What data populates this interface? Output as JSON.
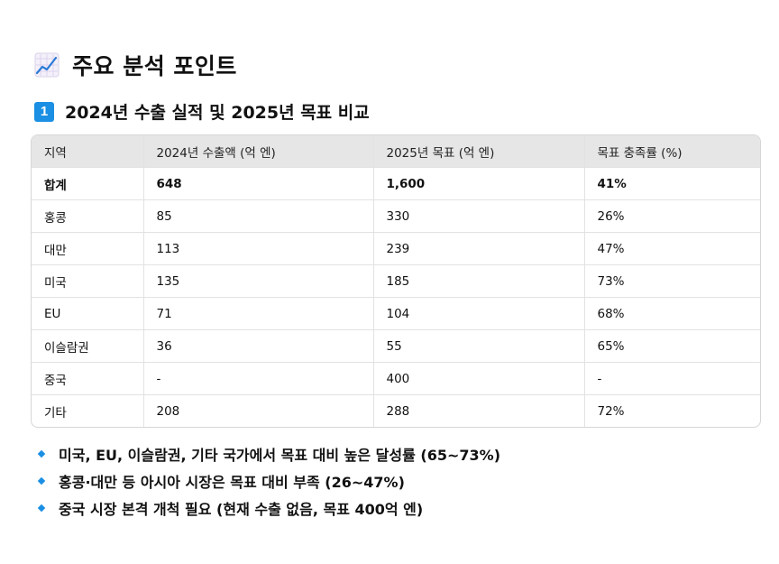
{
  "header": {
    "title": "주요 분석 포인트",
    "title_icon": "chart-increasing-icon",
    "section_number": "1",
    "section_title": "2024년 수출 실적 및 2025년 목표 비교"
  },
  "table": {
    "columns": [
      "지역",
      "2024년 수출액 (억 엔)",
      "2025년 목표 (억 엔)",
      "목표 충족률 (%)"
    ],
    "rows": [
      [
        "합계",
        "648",
        "1,600",
        "41%"
      ],
      [
        "홍콩",
        "85",
        "330",
        "26%"
      ],
      [
        "대만",
        "113",
        "239",
        "47%"
      ],
      [
        "미국",
        "135",
        "185",
        "73%"
      ],
      [
        "EU",
        "71",
        "104",
        "68%"
      ],
      [
        "이슬람권",
        "36",
        "55",
        "65%"
      ],
      [
        "중국",
        "-",
        "400",
        "-"
      ],
      [
        "기타",
        "208",
        "288",
        "72%"
      ]
    ]
  },
  "bullets": [
    "미국, EU, 이슬람권, 기타 국가에서 목표 대비 높은 달성률 (65~73%)",
    "홍콩·대만 등 아시아 시장은 목표 대비 부족 (26~47%)",
    "중국 시장 본격 개척 필요 (현재 수출 없음, 목표 400억 엔)"
  ],
  "colors": {
    "accent": "#1a8fe3",
    "header_bg": "#e6e6e6",
    "border": "#d6d6d6"
  }
}
